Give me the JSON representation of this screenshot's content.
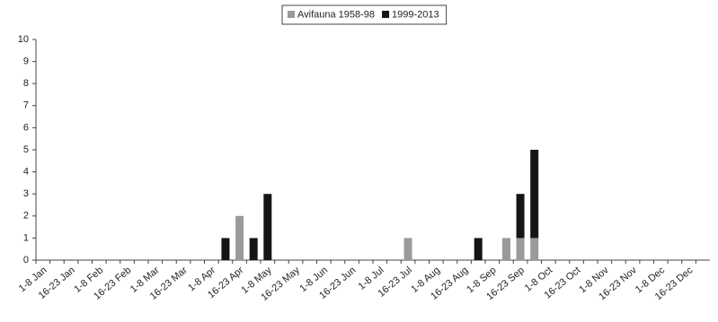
{
  "chart_data": {
    "type": "stacked-bar",
    "categories": [
      "1-8 Jan",
      null,
      "16-23 Jan",
      null,
      "1-8 Feb",
      null,
      "16-23 Feb",
      null,
      "1-8 Mar",
      null,
      "16-23 Mar",
      null,
      "1-8 Apr",
      null,
      "16-23 Apr",
      null,
      "1-8 May",
      null,
      "16-23 May",
      null,
      "1-8 Jun",
      null,
      "16-23 Jun",
      null,
      "1-8 Jul",
      null,
      "16-23 Jul",
      null,
      "1-8 Aug",
      null,
      "16-23 Aug",
      null,
      "1-8 Sep",
      null,
      "16-23 Sep",
      null,
      "1-8 Oct",
      null,
      "16-23 Oct",
      null,
      "1-8 Nov",
      null,
      "16-23 Nov",
      null,
      "1-8 Dec",
      null,
      "16-23 Dec",
      null
    ],
    "series": [
      {
        "name": "Avifauna 1958-98",
        "color": "#9a9a9a",
        "values": [
          0,
          0,
          0,
          0,
          0,
          0,
          0,
          0,
          0,
          0,
          0,
          0,
          0,
          0,
          2,
          0,
          0,
          0,
          0,
          0,
          0,
          0,
          0,
          0,
          0,
          0,
          1,
          0,
          0,
          0,
          0,
          0,
          0,
          1,
          1,
          1,
          0,
          0,
          0,
          0,
          0,
          0,
          0,
          0,
          0,
          0,
          0,
          0
        ]
      },
      {
        "name": "1999-2013",
        "color": "#151515",
        "values": [
          0,
          0,
          0,
          0,
          0,
          0,
          0,
          0,
          0,
          0,
          0,
          0,
          0,
          1,
          0,
          1,
          3,
          0,
          0,
          0,
          0,
          0,
          0,
          0,
          0,
          0,
          0,
          0,
          0,
          0,
          0,
          1,
          0,
          0,
          2,
          4,
          0,
          0,
          0,
          0,
          0,
          0,
          0,
          0,
          0,
          0,
          0,
          0
        ]
      }
    ],
    "ylim": [
      0,
      10
    ],
    "yticks": [
      0,
      1,
      2,
      3,
      4,
      5,
      6,
      7,
      8,
      9,
      10
    ],
    "grid": false,
    "legend": "top"
  }
}
